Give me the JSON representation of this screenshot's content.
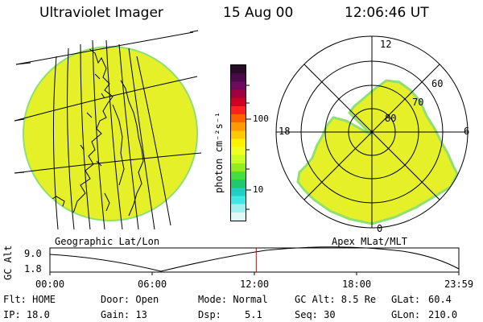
{
  "header": {
    "title": "Ultraviolet Imager",
    "date": "15 Aug 00",
    "time": "12:06:46 UT"
  },
  "colors": {
    "aurora_fill": "#e6f028",
    "aurora_edge": "#7fe070",
    "background": "#ffffff",
    "timeline_marker": "#cc0000"
  },
  "colorbar": {
    "unit_label": "photon cm⁻²s⁻¹",
    "ticks": [
      "100",
      "10"
    ],
    "scale": "log",
    "colors_top_to_bottom": [
      "#2a0a2a",
      "#4a0a4a",
      "#700a60",
      "#a00040",
      "#d00020",
      "#ff2020",
      "#ff6000",
      "#ff9a00",
      "#ffc800",
      "#fff000",
      "#f0ff20",
      "#c8ff20",
      "#90ee20",
      "#40e040",
      "#20c870",
      "#20d0c0",
      "#40e8e8",
      "#a0f0f0",
      "#e0f8f8"
    ]
  },
  "geo_panel": {
    "label": "Geographic Lat/Lon"
  },
  "polar_panel": {
    "label": "Apex MLat/MLT",
    "mlt_labels": {
      "top": "12",
      "left": "18",
      "right": "6",
      "bottom": "0"
    },
    "lat_labels": [
      "60",
      "70",
      "80"
    ]
  },
  "timeline": {
    "ylabel": "GC Alt",
    "y_ticks": [
      "9.0",
      "1.8"
    ],
    "x_ticks": [
      "00:00",
      "06:00",
      "12:00",
      "18:00",
      "23:59"
    ],
    "current_time_hours": 12.11,
    "ylim": [
      1.8,
      9.0
    ]
  },
  "status": {
    "flt": "Flt: HOME",
    "ip": "IP: 18.0",
    "door": "Door: Open",
    "gain": "Gain: 13",
    "mode": "Mode: Normal",
    "dsp_label": "Dsp:",
    "dsp_value": "5.1",
    "gc_alt": "GC Alt: 8.5 Re",
    "seq": "Seq: 30",
    "glat_label": "GLat:",
    "glat_value": "60.4",
    "glon_label": "GLon:",
    "glon_value": "210.0"
  }
}
